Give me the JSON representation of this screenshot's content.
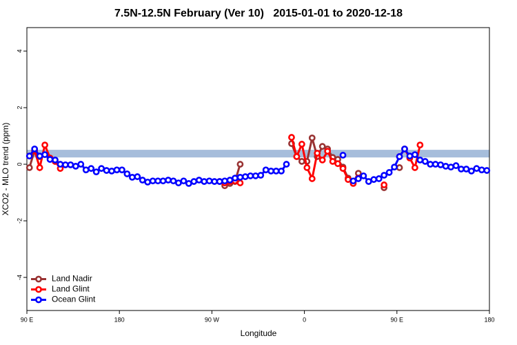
{
  "chart_data": {
    "type": "line",
    "title": "7.5N-12.5N February (Ver 10)   2015-01-01 to 2020-12-18",
    "x_label": "Longitude",
    "y_label": "XCO2 - MLO trend (ppm)",
    "xlim": [
      90,
      540
    ],
    "xticks": [
      {
        "value": 90,
        "label": "90 E"
      },
      180,
      {
        "value": 270,
        "label": "90 W"
      },
      {
        "value": 360,
        "label": "0"
      },
      {
        "value": 450,
        "label": "90 E"
      },
      {
        "value": 540,
        "label": "180"
      }
    ],
    "ylim": [
      -5.17,
      4.83
    ],
    "yticks": [
      -4,
      -2,
      0,
      2,
      4
    ],
    "band": [
      0.24,
      0.51
    ],
    "band_color": "#a6bddb",
    "legend": "bottom-left",
    "series": [
      {
        "name": "Land Nadir",
        "color": "#993333",
        "x": [
          92.5,
          97.5,
          102.5,
          107.5,
          282.5,
          287.5,
          292.5,
          297.5,
          302.5,
          347.5,
          352.5,
          357.5,
          362.5,
          367.5,
          372.5,
          377.5,
          382.5,
          387.5,
          392.5,
          397.5,
          402.5,
          407.5,
          412.5,
          417.5,
          437.5,
          442.5,
          452.5
        ],
        "values": [
          -0.12,
          0.49,
          0.27,
          null,
          -0.76,
          -0.68,
          -0.61,
          0.0,
          null,
          0.73,
          0.27,
          0.1,
          0.1,
          0.93,
          0.27,
          0.63,
          0.54,
          0.24,
          0.17,
          -0.1,
          -0.49,
          -0.63,
          -0.32,
          null,
          -0.83,
          null,
          -0.12
        ]
      },
      {
        "name": "Land Glint",
        "color": "#ff0000",
        "x": [
          92.5,
          97.5,
          102.5,
          107.5,
          112.5,
          117.5,
          122.5,
          127.5,
          277.5,
          282.5,
          287.5,
          292.5,
          297.5,
          302.5,
          347.5,
          352.5,
          357.5,
          362.5,
          367.5,
          372.5,
          377.5,
          382.5,
          387.5,
          392.5,
          397.5,
          402.5,
          407.5,
          412.5,
          417.5,
          437.5,
          442.5,
          452.5,
          457.5,
          462.5,
          467.5,
          472.5
        ],
        "values": [
          0.29,
          0.49,
          -0.12,
          0.68,
          0.22,
          0.1,
          -0.15,
          null,
          -0.61,
          -0.66,
          -0.61,
          -0.59,
          -0.66,
          null,
          0.95,
          0.27,
          0.71,
          -0.12,
          -0.51,
          0.39,
          0.15,
          0.46,
          0.1,
          0.02,
          -0.15,
          -0.54,
          -0.68,
          -0.49,
          null,
          -0.73,
          null,
          0.27,
          0.54,
          0.22,
          -0.12,
          0.68
        ]
      },
      {
        "name": "Ocean Glint",
        "color": "#0000ff",
        "x": [
          92.5,
          97.5,
          102.5,
          107.5,
          112.5,
          117.5,
          122.5,
          127.5,
          132.5,
          137.5,
          142.5,
          147.5,
          152.5,
          157.5,
          162.5,
          167.5,
          172.5,
          177.5,
          182.5,
          187.5,
          192.5,
          197.5,
          202.5,
          207.5,
          212.5,
          217.5,
          222.5,
          227.5,
          232.5,
          237.5,
          242.5,
          247.5,
          252.5,
          257.5,
          262.5,
          267.5,
          272.5,
          277.5,
          282.5,
          287.5,
          292.5,
          297.5,
          302.5,
          307.5,
          312.5,
          317.5,
          322.5,
          327.5,
          332.5,
          337.5,
          342.5,
          347.5,
          397.5,
          402.5,
          407.5,
          412.5,
          417.5,
          422.5,
          427.5,
          432.5,
          437.5,
          442.5,
          447.5,
          452.5,
          457.5,
          462.5,
          467.5,
          472.5,
          477.5,
          482.5,
          487.5,
          492.5,
          497.5,
          502.5,
          507.5,
          512.5,
          517.5,
          522.5,
          527.5,
          532.5,
          537.5
        ],
        "values": [
          0.29,
          0.54,
          0.29,
          0.34,
          0.17,
          0.15,
          0.0,
          -0.02,
          -0.02,
          -0.07,
          0.0,
          -0.2,
          -0.15,
          -0.27,
          -0.15,
          -0.22,
          -0.24,
          -0.2,
          -0.2,
          -0.34,
          -0.46,
          -0.44,
          -0.56,
          -0.63,
          -0.59,
          -0.59,
          -0.59,
          -0.56,
          -0.59,
          -0.66,
          -0.59,
          -0.68,
          -0.61,
          -0.56,
          -0.61,
          -0.59,
          -0.61,
          -0.61,
          -0.59,
          -0.56,
          -0.49,
          -0.46,
          -0.44,
          -0.41,
          -0.41,
          -0.39,
          -0.2,
          -0.24,
          -0.24,
          -0.24,
          0.0,
          null,
          0.32,
          null,
          -0.59,
          -0.51,
          -0.41,
          -0.61,
          -0.54,
          -0.51,
          -0.39,
          -0.29,
          -0.1,
          0.27,
          0.54,
          0.29,
          0.34,
          0.15,
          0.1,
          0.0,
          0.0,
          -0.02,
          -0.07,
          -0.1,
          -0.05,
          -0.17,
          -0.17,
          -0.24,
          -0.15,
          -0.2,
          -0.22
        ]
      }
    ]
  }
}
